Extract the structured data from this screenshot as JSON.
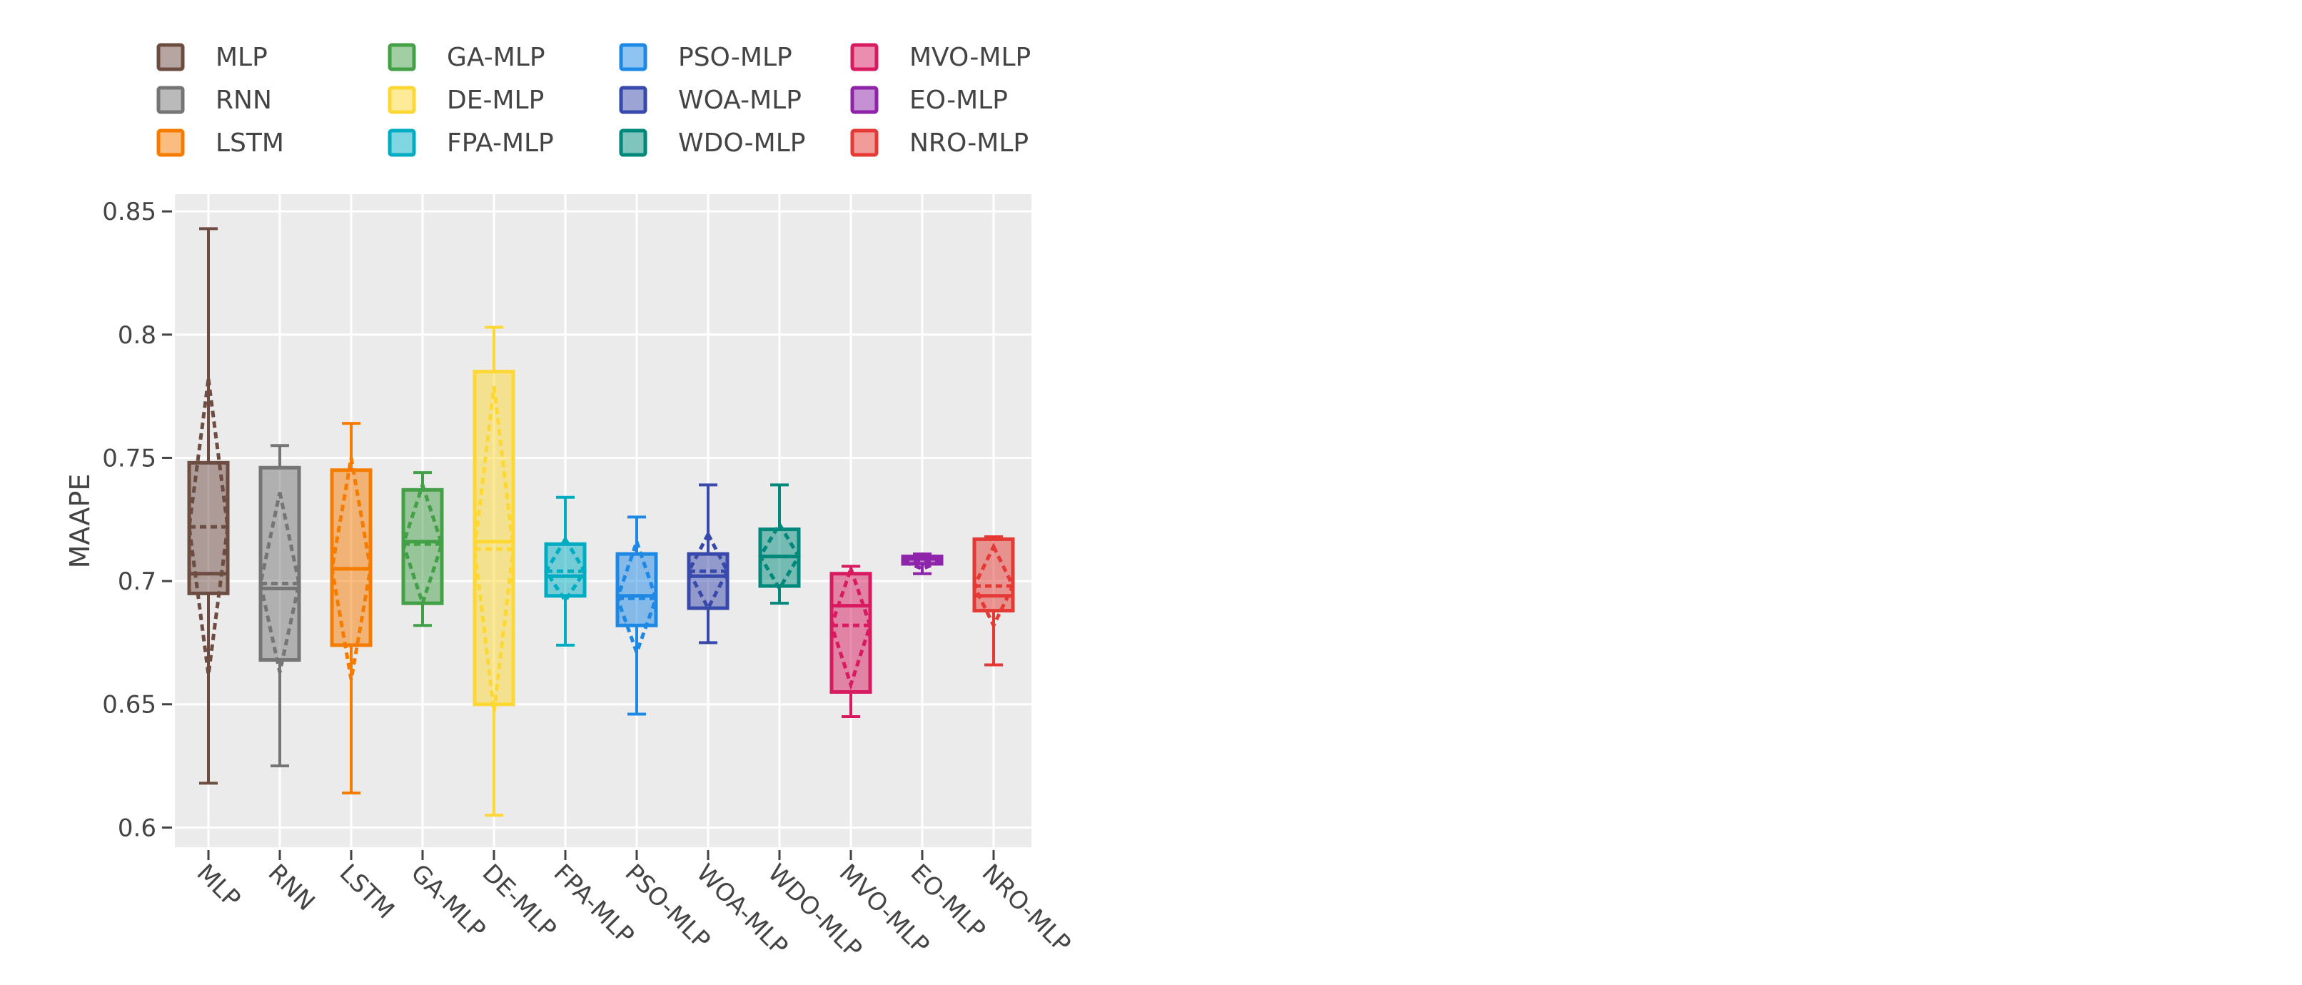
{
  "chart_data": {
    "type": "box",
    "title": "",
    "xlabel": "",
    "ylabel": "MAAPE",
    "ylim": [
      0.592,
      0.857
    ],
    "yticks": [
      0.6,
      0.65,
      0.7,
      0.75,
      0.8,
      0.85
    ],
    "ytick_labels": [
      "0.6",
      "0.65",
      "0.7",
      "0.75",
      "0.8",
      "0.85"
    ],
    "grid": true,
    "legend_position": "top",
    "categories": [
      "MLP",
      "RNN",
      "LSTM",
      "GA-MLP",
      "DE-MLP",
      "FPA-MLP",
      "PSO-MLP",
      "WOA-MLP",
      "WDO-MLP",
      "MVO-MLP",
      "EO-MLP",
      "NRO-MLP"
    ],
    "legend_order": [
      "MLP",
      "RNN",
      "LSTM",
      "GA-MLP",
      "DE-MLP",
      "FPA-MLP",
      "PSO-MLP",
      "WOA-MLP",
      "WDO-MLP",
      "MVO-MLP",
      "EO-MLP",
      "NRO-MLP"
    ],
    "series": [
      {
        "name": "MLP",
        "color": "#6d4c41",
        "min": 0.618,
        "q1": 0.695,
        "median": 0.703,
        "q3": 0.748,
        "max": 0.843,
        "mean": 0.722,
        "sd_low": 0.662,
        "sd_high": 0.782
      },
      {
        "name": "RNN",
        "color": "#757575",
        "min": 0.625,
        "q1": 0.668,
        "median": 0.697,
        "q3": 0.746,
        "max": 0.755,
        "mean": 0.699,
        "sd_low": 0.663,
        "sd_high": 0.736
      },
      {
        "name": "LSTM",
        "color": "#f57c00",
        "min": 0.614,
        "q1": 0.674,
        "median": 0.705,
        "q3": 0.745,
        "max": 0.764,
        "mean": 0.705,
        "sd_low": 0.66,
        "sd_high": 0.75
      },
      {
        "name": "GA-MLP",
        "color": "#43a047",
        "min": 0.682,
        "q1": 0.691,
        "median": 0.716,
        "q3": 0.737,
        "max": 0.744,
        "mean": 0.715,
        "sd_low": 0.691,
        "sd_high": 0.739
      },
      {
        "name": "DE-MLP",
        "color": "#fdd835",
        "min": 0.605,
        "q1": 0.65,
        "median": 0.716,
        "q3": 0.785,
        "max": 0.803,
        "mean": 0.713,
        "sd_low": 0.647,
        "sd_high": 0.779
      },
      {
        "name": "FPA-MLP",
        "color": "#00acc1",
        "min": 0.674,
        "q1": 0.694,
        "median": 0.702,
        "q3": 0.715,
        "max": 0.734,
        "mean": 0.704,
        "sd_low": 0.692,
        "sd_high": 0.717
      },
      {
        "name": "PSO-MLP",
        "color": "#1e88e5",
        "min": 0.646,
        "q1": 0.682,
        "median": 0.694,
        "q3": 0.711,
        "max": 0.726,
        "mean": 0.693,
        "sd_low": 0.671,
        "sd_high": 0.716
      },
      {
        "name": "WOA-MLP",
        "color": "#3949ab",
        "min": 0.675,
        "q1": 0.689,
        "median": 0.702,
        "q3": 0.711,
        "max": 0.739,
        "mean": 0.704,
        "sd_low": 0.689,
        "sd_high": 0.719
      },
      {
        "name": "WDO-MLP",
        "color": "#00897b",
        "min": 0.691,
        "q1": 0.698,
        "median": 0.71,
        "q3": 0.721,
        "max": 0.739,
        "mean": 0.71,
        "sd_low": 0.697,
        "sd_high": 0.723
      },
      {
        "name": "MVO-MLP",
        "color": "#d81b60",
        "min": 0.645,
        "q1": 0.655,
        "median": 0.69,
        "q3": 0.703,
        "max": 0.706,
        "mean": 0.682,
        "sd_low": 0.658,
        "sd_high": 0.705
      },
      {
        "name": "EO-MLP",
        "color": "#8e24aa",
        "min": 0.703,
        "q1": 0.707,
        "median": 0.709,
        "q3": 0.71,
        "max": 0.711,
        "mean": 0.708,
        "sd_low": 0.705,
        "sd_high": 0.711
      },
      {
        "name": "NRO-MLP",
        "color": "#e53935",
        "min": 0.666,
        "q1": 0.688,
        "median": 0.694,
        "q3": 0.717,
        "max": 0.718,
        "mean": 0.698,
        "sd_low": 0.682,
        "sd_high": 0.714
      }
    ]
  }
}
